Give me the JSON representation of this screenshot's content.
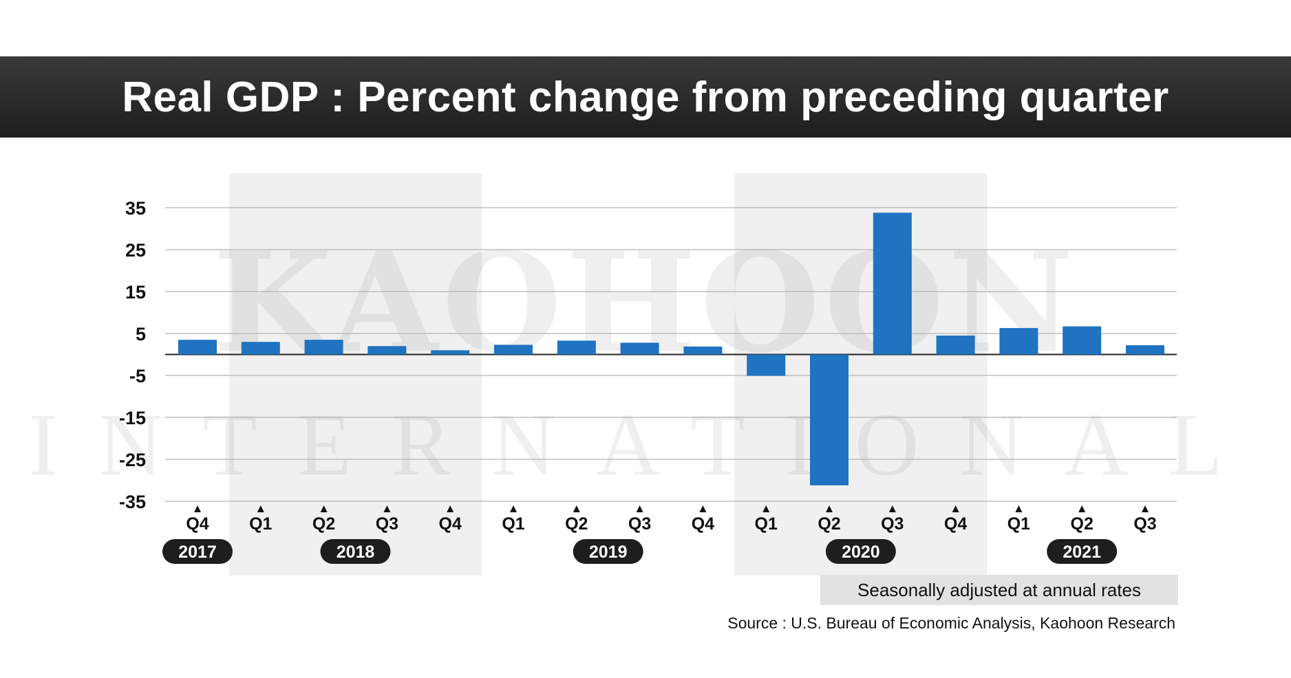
{
  "title": "Real GDP : Percent change from preceding quarter",
  "note": "Seasonally adjusted at annual rates",
  "source": "Source : U.S. Bureau of Economic Analysis, Kaohoon Research",
  "watermark": {
    "line1": "KAOHOON",
    "line2": "INTERNATIONAL"
  },
  "colors": {
    "bar": "#1f73c1",
    "title_bg": "#2a2a2a",
    "band": "#f0f0f0",
    "grid": "#b4b4b4",
    "year_pill": "#1e1e1e"
  },
  "chart_data": {
    "type": "bar",
    "title": "Real GDP : Percent change from preceding quarter",
    "xlabel": "",
    "ylabel": "",
    "categories": [
      "Q4",
      "Q1",
      "Q2",
      "Q3",
      "Q4",
      "Q1",
      "Q2",
      "Q3",
      "Q4",
      "Q1",
      "Q2",
      "Q3",
      "Q4",
      "Q1",
      "Q2",
      "Q3"
    ],
    "year_labels": [
      {
        "label": "2017",
        "category_index": 0
      },
      {
        "label": "2018",
        "category_index": 2.5
      },
      {
        "label": "2019",
        "category_index": 6.5
      },
      {
        "label": "2020",
        "category_index": 10.5
      },
      {
        "label": "2021",
        "category_index": 14
      }
    ],
    "shaded_year_spans": [
      [
        1,
        4
      ],
      [
        9,
        12
      ]
    ],
    "values": [
      3.5,
      3.0,
      3.5,
      2.0,
      1.0,
      2.3,
      3.3,
      2.8,
      1.9,
      -5.1,
      -31.2,
      33.8,
      4.5,
      6.3,
      6.7,
      2.2
    ],
    "yticks": [
      35,
      25,
      15,
      5,
      -5,
      -15,
      -25,
      -35
    ],
    "ylim": [
      -35,
      35
    ],
    "grid": true,
    "legend": "none"
  }
}
